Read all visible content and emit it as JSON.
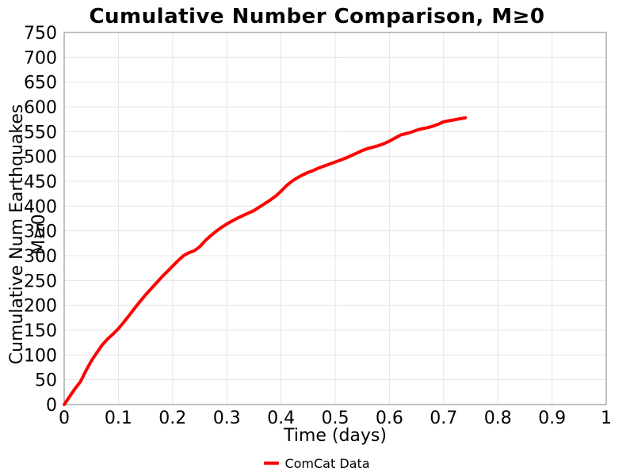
{
  "chart_data": {
    "type": "line",
    "title": "Cumulative Number Comparison, M≥0",
    "xlabel": "Time (days)",
    "ylabel": "Cumulative Num Earthquakes M≥0",
    "xlim": [
      0,
      1
    ],
    "ylim": [
      0,
      750
    ],
    "xticks": [
      0,
      0.1,
      0.2,
      0.3,
      0.4,
      0.5,
      0.6,
      0.7,
      0.8,
      0.9,
      1
    ],
    "xtick_labels": [
      "0",
      "0.1",
      "0.2",
      "0.3",
      "0.4",
      "0.5",
      "0.6",
      "0.7",
      "0.8",
      "0.9",
      "1"
    ],
    "yticks": [
      0,
      50,
      100,
      150,
      200,
      250,
      300,
      350,
      400,
      450,
      500,
      550,
      600,
      650,
      700,
      750
    ],
    "ytick_labels": [
      "0",
      "50",
      "100",
      "150",
      "200",
      "250",
      "300",
      "350",
      "400",
      "450",
      "500",
      "550",
      "600",
      "650",
      "700",
      "750"
    ],
    "grid": true,
    "grid_color": "#e5e5e5",
    "border_color": "#9e9e9e",
    "legend_position": "bottom-center",
    "series": [
      {
        "name": "ComCat Data",
        "color": "#ff0000",
        "line_width": 4,
        "x": [
          0.0,
          0.01,
          0.02,
          0.03,
          0.04,
          0.05,
          0.06,
          0.07,
          0.08,
          0.09,
          0.1,
          0.11,
          0.12,
          0.13,
          0.14,
          0.15,
          0.16,
          0.17,
          0.18,
          0.19,
          0.2,
          0.21,
          0.22,
          0.23,
          0.24,
          0.25,
          0.26,
          0.27,
          0.28,
          0.29,
          0.3,
          0.31,
          0.32,
          0.33,
          0.34,
          0.35,
          0.36,
          0.37,
          0.38,
          0.39,
          0.4,
          0.41,
          0.42,
          0.43,
          0.44,
          0.45,
          0.46,
          0.47,
          0.48,
          0.49,
          0.5,
          0.51,
          0.52,
          0.53,
          0.54,
          0.55,
          0.56,
          0.57,
          0.58,
          0.59,
          0.6,
          0.61,
          0.62,
          0.63,
          0.64,
          0.65,
          0.66,
          0.67,
          0.68,
          0.69,
          0.7,
          0.71,
          0.72,
          0.73,
          0.74
        ],
        "y": [
          0,
          16,
          32,
          46,
          68,
          88,
          104,
          120,
          132,
          142,
          153,
          166,
          180,
          194,
          208,
          221,
          233,
          245,
          257,
          268,
          279,
          290,
          300,
          306,
          310,
          318,
          330,
          340,
          349,
          357,
          364,
          370,
          376,
          381,
          386,
          391,
          398,
          405,
          412,
          420,
          430,
          441,
          450,
          457,
          463,
          468,
          472,
          477,
          481,
          485,
          489,
          493,
          497,
          502,
          507,
          512,
          516,
          519,
          522,
          526,
          531,
          537,
          543,
          546,
          549,
          553,
          556,
          558,
          561,
          565,
          570,
          572,
          574,
          576,
          578
        ]
      }
    ]
  }
}
